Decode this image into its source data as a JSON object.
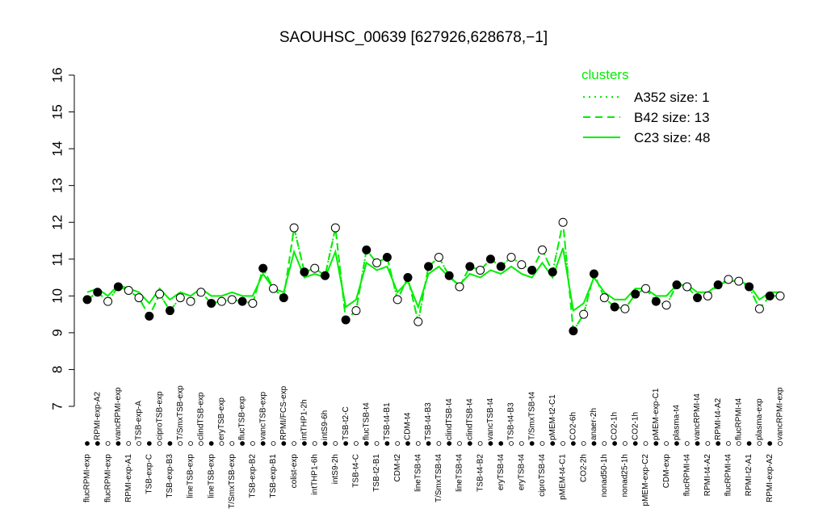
{
  "chart_data": {
    "type": "line",
    "title": "SAOUHSC_00639 [627926,628678,−1]",
    "legend_title": "clusters",
    "ylim": [
      7,
      16
    ],
    "yticks": [
      7,
      8,
      9,
      10,
      11,
      12,
      13,
      14,
      15,
      16
    ],
    "categories": [
      "flucRPMI-exp",
      "RPMI-exp-A2",
      "flucRPMI-exp",
      "vancRPMI-exp",
      "RPMI-exp-A1",
      "TSB-exp-A",
      "TSB-exp-C",
      "ciproTSB-exp",
      "TSB-exp-B3",
      "T/SmxTSB-exp",
      "lineTSB-exp",
      "clindTSB-exp",
      "lineTSB-exp",
      "eryTSB-exp",
      "T/SmxTSB-exp",
      "flucTSB-exp",
      "TSB-exp-B2",
      "vancTSB-exp",
      "TSB-exp-B1",
      "RPMI/FCS-exp",
      "colist-exp",
      "intTHP1-2h",
      "intTHP1-6h",
      "intS9-6h",
      "intS9-2h",
      "TSB-t2-C",
      "TSB-t4-C",
      "flucTSB-t4",
      "TSB-t2-B1",
      "TSB-t4-B1",
      "CDM-t2",
      "CDM-t4",
      "lineTSB-t4",
      "TSB-t4-B3",
      "T/SmxTSB-t4",
      "clindTSB-t4",
      "lineTSB-t4",
      "clindTSB-t4",
      "TSB-t4-B2",
      "vancTSB-t4",
      "eryTSB-t4",
      "TSB-t4-B3",
      "eryTSB-t4",
      "T/SmxTSB-t4",
      "ciproTSB-t4",
      "pMEM-t2-C1",
      "pMEM-t4-C1",
      "CO2-6h",
      "CO2-2h",
      "anaer-2h",
      "nonad50-1h",
      "CO2-1h",
      "nonad25-1h",
      "CO2-1h",
      "pMEM-exp-C2",
      "pMEM-exp-C1",
      "CDM-exp",
      "plasma-t4",
      "flucRPMI-t4",
      "vancRPMI-t4",
      "RPMI-t4-A2",
      "RPMI-t4-A2",
      "flucRPMI-t4",
      "flucRPMI-t4",
      "RPMI-t2-A1",
      "plasma-exp",
      "RPMI-exp-A2",
      "vancRPMI-exp"
    ],
    "points": {
      "values": [
        9.9,
        10.1,
        9.85,
        10.25,
        10.15,
        9.95,
        9.45,
        10.05,
        9.6,
        9.95,
        9.85,
        10.1,
        9.8,
        9.85,
        9.9,
        9.85,
        9.8,
        10.75,
        10.2,
        9.95,
        11.85,
        10.65,
        10.75,
        10.55,
        11.85,
        9.35,
        9.6,
        11.25,
        10.9,
        11.05,
        9.9,
        10.5,
        9.3,
        10.8,
        11.05,
        10.55,
        10.25,
        10.8,
        10.7,
        11.0,
        10.8,
        11.05,
        10.85,
        10.7,
        11.25,
        10.65,
        12.0,
        9.05,
        9.5,
        10.6,
        9.95,
        9.7,
        9.65,
        10.05,
        10.2,
        9.85,
        9.75,
        10.3,
        10.25,
        9.95,
        10.0,
        10.3,
        10.45,
        10.4,
        10.25,
        9.65,
        10.0,
        10.0
      ],
      "fill": [
        "black",
        "black",
        "white",
        "black",
        "white",
        "white",
        "black",
        "white",
        "black",
        "white",
        "white",
        "white",
        "black",
        "white",
        "white",
        "black",
        "white",
        "black",
        "white",
        "black",
        "white",
        "black",
        "white",
        "black",
        "white",
        "black",
        "white",
        "black",
        "white",
        "black",
        "white",
        "black",
        "white",
        "black",
        "white",
        "black",
        "white",
        "black",
        "white",
        "black",
        "black",
        "white",
        "white",
        "black",
        "white",
        "black",
        "white",
        "black",
        "white",
        "black",
        "white",
        "black",
        "white",
        "black",
        "white",
        "black",
        "white",
        "black",
        "white",
        "black",
        "white",
        "black",
        "white",
        "white",
        "black",
        "white",
        "black",
        "white"
      ]
    },
    "series": [
      {
        "name": "A352 size: 1",
        "color": "#00ee00",
        "dash": "dotted",
        "values": [
          9.9,
          10.1,
          9.85,
          10.25,
          10.15,
          9.95,
          9.45,
          10.05,
          9.6,
          9.95,
          9.85,
          10.1,
          9.8,
          9.85,
          9.9,
          9.85,
          9.8,
          10.75,
          10.2,
          9.95,
          11.85,
          10.65,
          10.75,
          10.55,
          11.85,
          9.35,
          9.6,
          11.25,
          10.9,
          11.05,
          9.9,
          10.5,
          9.3,
          10.8,
          11.05,
          10.55,
          10.25,
          10.8,
          10.7,
          11.0,
          10.8,
          11.05,
          10.85,
          10.7,
          11.25,
          10.65,
          12.0,
          9.05,
          9.5,
          10.6,
          9.95,
          9.7,
          9.65,
          10.05,
          10.2,
          9.85,
          9.75,
          10.3,
          10.25,
          9.95,
          10.0,
          10.3,
          10.45,
          10.4,
          10.25,
          9.65,
          10.0,
          10.0
        ]
      },
      {
        "name": "B42 size: 13",
        "color": "#00ee00",
        "dash": "dashed",
        "values": [
          9.9,
          10.1,
          9.85,
          10.25,
          10.15,
          9.95,
          9.45,
          10.05,
          9.6,
          9.95,
          9.85,
          10.1,
          9.8,
          9.85,
          9.9,
          9.85,
          9.8,
          10.75,
          10.2,
          9.95,
          11.85,
          10.65,
          10.75,
          10.55,
          11.85,
          9.35,
          9.6,
          11.25,
          10.9,
          11.05,
          9.9,
          10.5,
          9.3,
          10.8,
          11.05,
          10.55,
          10.25,
          10.8,
          10.7,
          11.0,
          10.8,
          11.05,
          10.85,
          10.7,
          11.25,
          10.65,
          12.0,
          9.05,
          9.5,
          10.6,
          9.95,
          9.7,
          9.65,
          10.05,
          10.2,
          9.85,
          9.75,
          10.3,
          10.25,
          9.95,
          10.0,
          10.3,
          10.45,
          10.4,
          10.25,
          9.65,
          10.0,
          10.0
        ]
      },
      {
        "name": "C23 size: 48",
        "color": "#00ee00",
        "dash": "solid",
        "values": [
          10.1,
          10.2,
          10.0,
          10.3,
          10.2,
          10.1,
          9.8,
          10.2,
          9.9,
          10.1,
          10.0,
          10.2,
          10.0,
          10.0,
          10.1,
          10.0,
          10.0,
          10.6,
          10.2,
          10.1,
          11.2,
          10.5,
          10.6,
          10.5,
          11.2,
          9.7,
          9.9,
          10.9,
          10.7,
          10.8,
          10.1,
          10.4,
          9.7,
          10.6,
          10.8,
          10.5,
          10.3,
          10.6,
          10.5,
          10.7,
          10.6,
          10.8,
          10.6,
          10.5,
          10.9,
          10.5,
          11.3,
          9.6,
          9.8,
          10.5,
          10.1,
          9.9,
          9.9,
          10.2,
          10.2,
          10.0,
          10.0,
          10.3,
          10.3,
          10.1,
          10.1,
          10.3,
          10.4,
          10.4,
          10.3,
          9.9,
          10.1,
          10.1
        ]
      }
    ]
  }
}
